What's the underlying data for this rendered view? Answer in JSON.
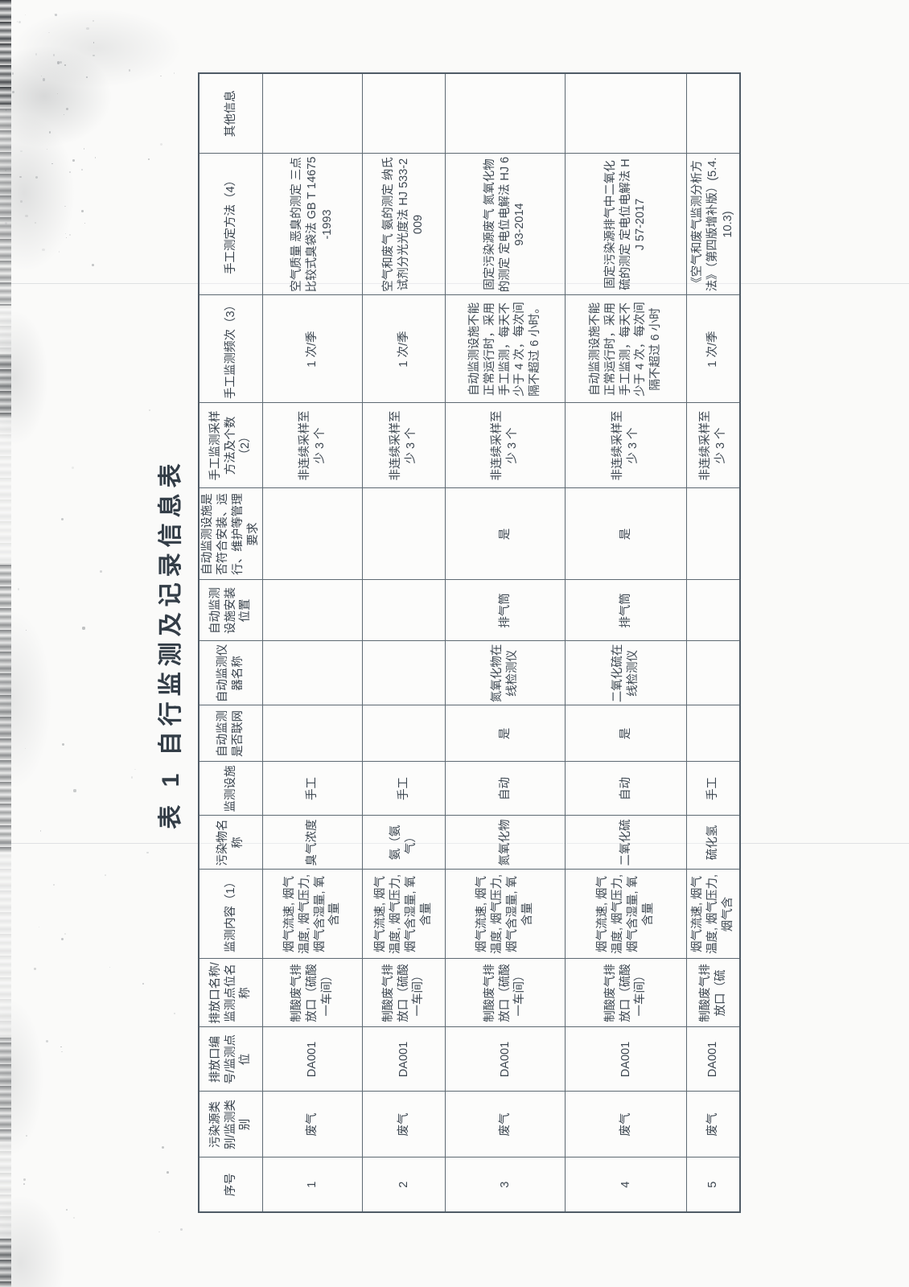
{
  "page": {
    "title": "表 1 自行监测及记录信息表"
  },
  "table": {
    "headers": [
      "序号",
      "污染源类别/监测类别",
      "排放口编号/监测点位",
      "排放口名称/监测点位名称",
      "监测内容（1）",
      "污染物名称",
      "监测设施",
      "自动监测是否联网",
      "自动监测仪器名称",
      "自动监测设施安装位置",
      "自动监测设施是否符合安装、运行、维护等管理要求",
      "手工监测采样方法及个数（2）",
      "手工监测频次（3）",
      "手工测定方法（4）",
      "其他信息"
    ],
    "rows": [
      [
        "1",
        "废气",
        "DA001",
        "制酸废气排放口（硫酸一车间）",
        "烟气流速, 烟气温度, 烟气压力, 烟气含湿量, 氧含量",
        "臭气浓度",
        "手工",
        "",
        "",
        "",
        "",
        "非连续采样至少 3 个",
        "1 次/季",
        "空气质量 恶臭的测定 三点比较式臭袋法 GB T 14675-1993",
        ""
      ],
      [
        "2",
        "废气",
        "DA001",
        "制酸废气排放口（硫酸一车间）",
        "烟气流速, 烟气温度, 烟气压力, 烟气含湿量, 氧含量",
        "氨（氨气）",
        "手工",
        "",
        "",
        "",
        "",
        "非连续采样至少 3 个",
        "1 次/季",
        "空气和废气 氨的测定 纳氏试剂分光光度法 HJ 533-2009",
        ""
      ],
      [
        "3",
        "废气",
        "DA001",
        "制酸废气排放口（硫酸一车间）",
        "烟气流速, 烟气温度, 烟气压力, 烟气含湿量, 氧含量",
        "氮氧化物",
        "自动",
        "是",
        "氮氧化物在线检测仪",
        "排气筒",
        "是",
        "非连续采样至少 3 个",
        "自动监测设施不能正常运行时，采用手工监测，每天不少于 4 次，每次间隔不超过 6 小时。",
        "固定污染源废气 氮氧化物的测定 定电位电解法 HJ 693-2014",
        ""
      ],
      [
        "4",
        "废气",
        "DA001",
        "制酸废气排放口（硫酸一车间）",
        "烟气流速, 烟气温度, 烟气压力, 烟气含湿量, 氧含量",
        "二氧化硫",
        "自动",
        "是",
        "二氧化硫在线检测仪",
        "排气筒",
        "是",
        "非连续采样至少 3 个",
        "自动监测设施不能正常运行时，采用手工监测，每天不少于 4 次，每次间隔不超过 6 小时",
        "固定污染源排气中二氧化硫的测定 定电位电解法 HJ 57-2017",
        ""
      ],
      [
        "5",
        "废气",
        "DA001",
        "制酸废气排放口（硫",
        "烟气流速, 烟气温度, 烟气压力, 烟气含",
        "硫化氢",
        "手工",
        "",
        "",
        "",
        "",
        "非连续采样至少 3 个",
        "1 次/季",
        "《空气和废气监测分析方法》（第四版增补版）(5.4.10.3)",
        ""
      ]
    ]
  }
}
